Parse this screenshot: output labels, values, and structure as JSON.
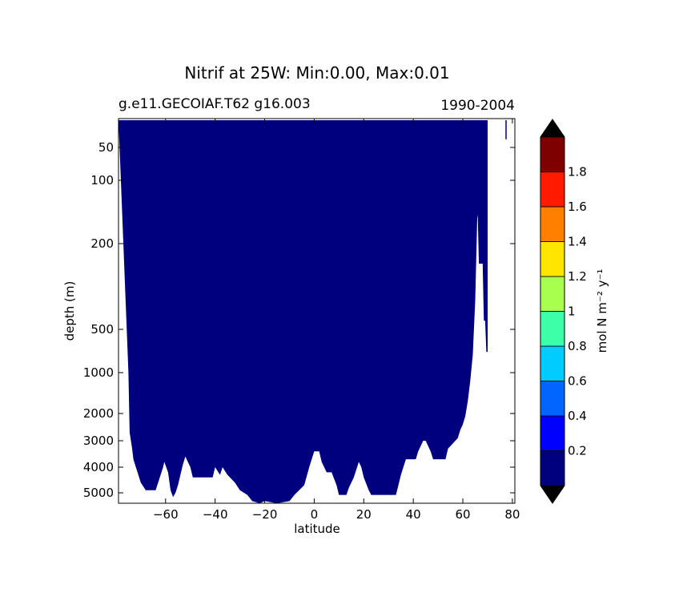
{
  "chart_data": {
    "type": "heatmap",
    "title": "Nitrif at 25W: Min:0.00, Max:0.01",
    "subtitle_left": "g.e11.GECOIAF.T62 g16.003",
    "subtitle_right": "1990-2004",
    "xlabel": "latitude",
    "ylabel": "depth (m)",
    "xlim": [
      -79,
      81
    ],
    "x_ticks": [
      -60,
      -40,
      -20,
      0,
      20,
      40,
      60,
      80
    ],
    "x_tick_labels": [
      "−60",
      "−40",
      "−20",
      "0",
      "20",
      "40",
      "60",
      "80"
    ],
    "y_scale": "depth-stretched (inverted)",
    "y_ticks": [
      50,
      100,
      200,
      500,
      1000,
      2000,
      3000,
      4000,
      5000
    ],
    "y_tick_labels": [
      "50",
      "100",
      "200",
      "500",
      "1000",
      "2000",
      "3000",
      "4000",
      "5000"
    ],
    "field_color": "#00007f",
    "field_value_range": "0.0–0.2 (lowest colorbar bin)",
    "bottom_depth_profile": [
      [
        -79,
        0
      ],
      [
        -75,
        1000
      ],
      [
        -74.5,
        2700
      ],
      [
        -74,
        3000
      ],
      [
        -73.5,
        3300
      ],
      [
        -73,
        3700
      ],
      [
        -72,
        4000
      ],
      [
        -71,
        4300
      ],
      [
        -70,
        4600
      ],
      [
        -68,
        4900
      ],
      [
        -64,
        4900
      ],
      [
        -63,
        4600
      ],
      [
        -62,
        4300
      ],
      [
        -61,
        4000
      ],
      [
        -60.5,
        3800
      ],
      [
        -59,
        4200
      ],
      [
        -58,
        4900
      ],
      [
        -57,
        5200
      ],
      [
        -56,
        5000
      ],
      [
        -55,
        4700
      ],
      [
        -54,
        4300
      ],
      [
        -53,
        3900
      ],
      [
        -52,
        3600
      ],
      [
        -50,
        4000
      ],
      [
        -49,
        4400
      ],
      [
        -41,
        4400
      ],
      [
        -40,
        4000
      ],
      [
        -38,
        4300
      ],
      [
        -37,
        4000
      ],
      [
        -35,
        4300
      ],
      [
        -32,
        4600
      ],
      [
        -30,
        4900
      ],
      [
        -27,
        5100
      ],
      [
        -25,
        5400
      ],
      [
        -22,
        5500
      ],
      [
        -20,
        5400
      ],
      [
        -15,
        5500
      ],
      [
        -10,
        5400
      ],
      [
        -8,
        5100
      ],
      [
        -4,
        4700
      ],
      [
        -2,
        4000
      ],
      [
        0,
        3400
      ],
      [
        2,
        3400
      ],
      [
        3,
        3800
      ],
      [
        5,
        4200
      ],
      [
        7,
        4200
      ],
      [
        9,
        4700
      ],
      [
        10,
        5100
      ],
      [
        13,
        5100
      ],
      [
        14,
        4800
      ],
      [
        16,
        4400
      ],
      [
        18,
        3800
      ],
      [
        19,
        4000
      ],
      [
        20,
        4400
      ],
      [
        22,
        4900
      ],
      [
        23,
        5100
      ],
      [
        33,
        5100
      ],
      [
        34,
        4700
      ],
      [
        35,
        4300
      ],
      [
        37,
        3700
      ],
      [
        41,
        3700
      ],
      [
        42,
        3400
      ],
      [
        44,
        3000
      ],
      [
        45,
        3000
      ],
      [
        47,
        3400
      ],
      [
        48,
        3700
      ],
      [
        53,
        3700
      ],
      [
        54,
        3300
      ],
      [
        56,
        3100
      ],
      [
        58,
        2900
      ],
      [
        59,
        2600
      ],
      [
        60,
        2400
      ],
      [
        61,
        2100
      ],
      [
        62,
        1700
      ],
      [
        63,
        1200
      ],
      [
        64,
        800
      ],
      [
        65,
        400
      ],
      [
        65.8,
        160
      ],
      [
        66,
        155
      ],
      [
        66.5,
        270
      ],
      [
        68,
        270
      ],
      [
        68.5,
        470
      ],
      [
        69,
        470
      ],
      [
        69.5,
        760
      ],
      [
        70,
        760
      ],
      [
        70,
        0
      ]
    ],
    "colorbar": {
      "label": "mol N m⁻² y⁻¹",
      "extend": "both",
      "under_color": "#000000",
      "over_color": "#000000",
      "bins": [
        {
          "range": [
            0.0,
            0.2
          ],
          "color": "#00007f"
        },
        {
          "range": [
            0.2,
            0.4
          ],
          "color": "#0000ff"
        },
        {
          "range": [
            0.4,
            0.6
          ],
          "color": "#0066ff"
        },
        {
          "range": [
            0.6,
            0.8
          ],
          "color": "#00ccff"
        },
        {
          "range": [
            0.8,
            1.0
          ],
          "color": "#3dffa8"
        },
        {
          "range": [
            1.0,
            1.2
          ],
          "color": "#a8ff4d"
        },
        {
          "range": [
            1.2,
            1.4
          ],
          "color": "#ffe500"
        },
        {
          "range": [
            1.4,
            1.6
          ],
          "color": "#ff7f00"
        },
        {
          "range": [
            1.6,
            1.8
          ],
          "color": "#ff1a00"
        },
        {
          "range": [
            1.8,
            2.0
          ],
          "color": "#7f0000"
        }
      ],
      "ticks": [
        0.2,
        0.4,
        0.6,
        0.8,
        1.0,
        1.2,
        1.4,
        1.6,
        1.8
      ],
      "tick_labels": [
        "0.2",
        "0.4",
        "0.6",
        "0.8",
        "1",
        "1.2",
        "1.4",
        "1.6",
        "1.8"
      ]
    }
  }
}
